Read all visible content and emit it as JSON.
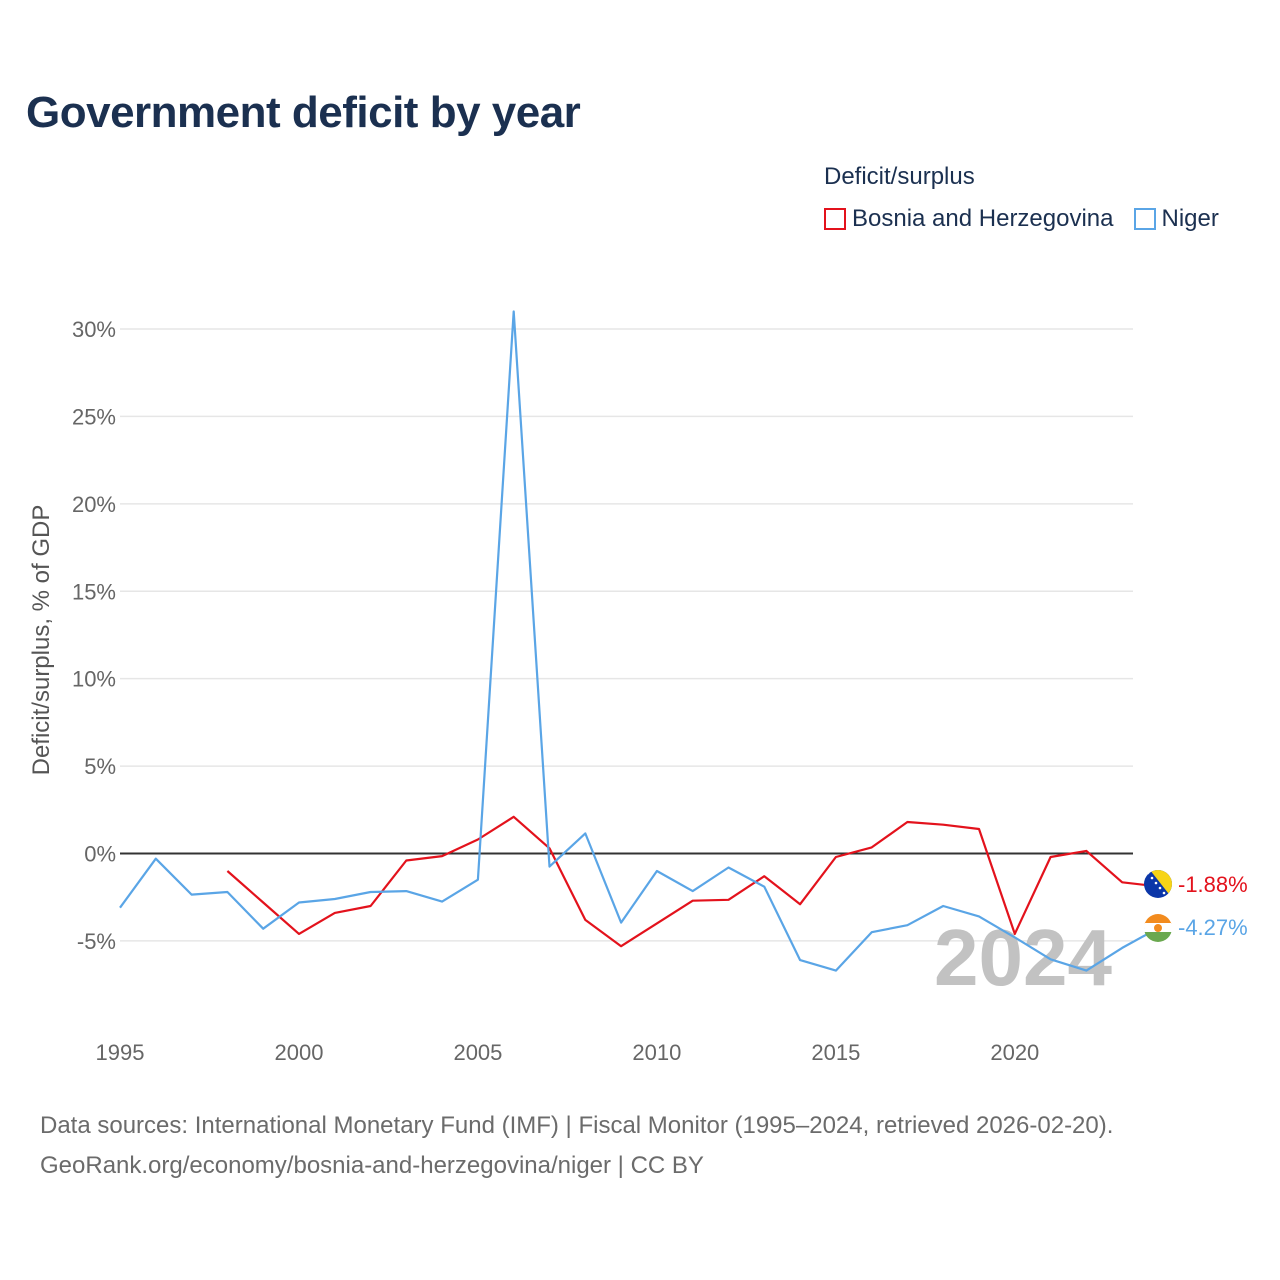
{
  "title": "Government deficit by year",
  "legend": {
    "title": "Deficit/surplus",
    "items": [
      {
        "label": "Bosnia and Herzegovina",
        "color": "#e3121c"
      },
      {
        "label": "Niger",
        "color": "#5aa5e6"
      }
    ]
  },
  "sources": {
    "line1": "Data sources: International Monetary Fund (IMF) | Fiscal Monitor (1995–2024, retrieved 2026-02-20).",
    "line2": "GeoRank.org/economy/bosnia-and-herzegovina/niger | CC BY"
  },
  "chart_data": {
    "type": "line",
    "title": "Government deficit by year",
    "xlabel": "",
    "ylabel": "Deficit/surplus, % of GDP",
    "xlim": [
      1995,
      2024
    ],
    "ylim": [
      -10,
      31
    ],
    "x_ticks": [
      1995,
      2000,
      2005,
      2010,
      2015,
      2020
    ],
    "y_ticks": [
      -5,
      0,
      5,
      10,
      15,
      20,
      25,
      30
    ],
    "y_tick_labels": [
      "-5%",
      "0%",
      "5%",
      "10%",
      "15%",
      "20%",
      "25%",
      "30%"
    ],
    "year_watermark": "2024",
    "series": [
      {
        "name": "Bosnia and Herzegovina",
        "color": "#e3121c",
        "end_label": "-1.88%",
        "flag": "ba",
        "x": [
          1998,
          1999,
          2000,
          2001,
          2002,
          2003,
          2004,
          2005,
          2006,
          2007,
          2008,
          2009,
          2010,
          2011,
          2012,
          2013,
          2014,
          2015,
          2016,
          2017,
          2018,
          2019,
          2020,
          2021,
          2022,
          2023,
          2024
        ],
        "values": [
          -1.0,
          -2.8,
          -4.6,
          -3.4,
          -3.0,
          -0.4,
          -0.15,
          0.8,
          2.1,
          0.3,
          -3.8,
          -5.3,
          -4.0,
          -2.7,
          -2.65,
          -1.3,
          -2.9,
          -0.2,
          0.35,
          1.8,
          1.65,
          1.4,
          -4.6,
          -0.2,
          0.15,
          -1.65,
          -1.88
        ]
      },
      {
        "name": "Niger",
        "color": "#5aa5e6",
        "end_label": "-4.27%",
        "flag": "ne",
        "x": [
          1995,
          1996,
          1997,
          1998,
          1999,
          2000,
          2001,
          2002,
          2003,
          2004,
          2005,
          2006,
          2007,
          2008,
          2009,
          2010,
          2011,
          2012,
          2013,
          2014,
          2015,
          2016,
          2017,
          2018,
          2019,
          2020,
          2021,
          2022,
          2023,
          2024
        ],
        "values": [
          -3.1,
          -0.3,
          -2.35,
          -2.2,
          -4.3,
          -2.8,
          -2.6,
          -2.2,
          -2.15,
          -2.75,
          -1.5,
          31.0,
          -0.75,
          1.15,
          -3.95,
          -1.0,
          -2.15,
          -0.8,
          -1.9,
          -6.1,
          -6.7,
          -4.5,
          -4.1,
          -3.0,
          -3.6,
          -4.8,
          -6.05,
          -6.7,
          -5.4,
          -4.27
        ]
      }
    ]
  }
}
